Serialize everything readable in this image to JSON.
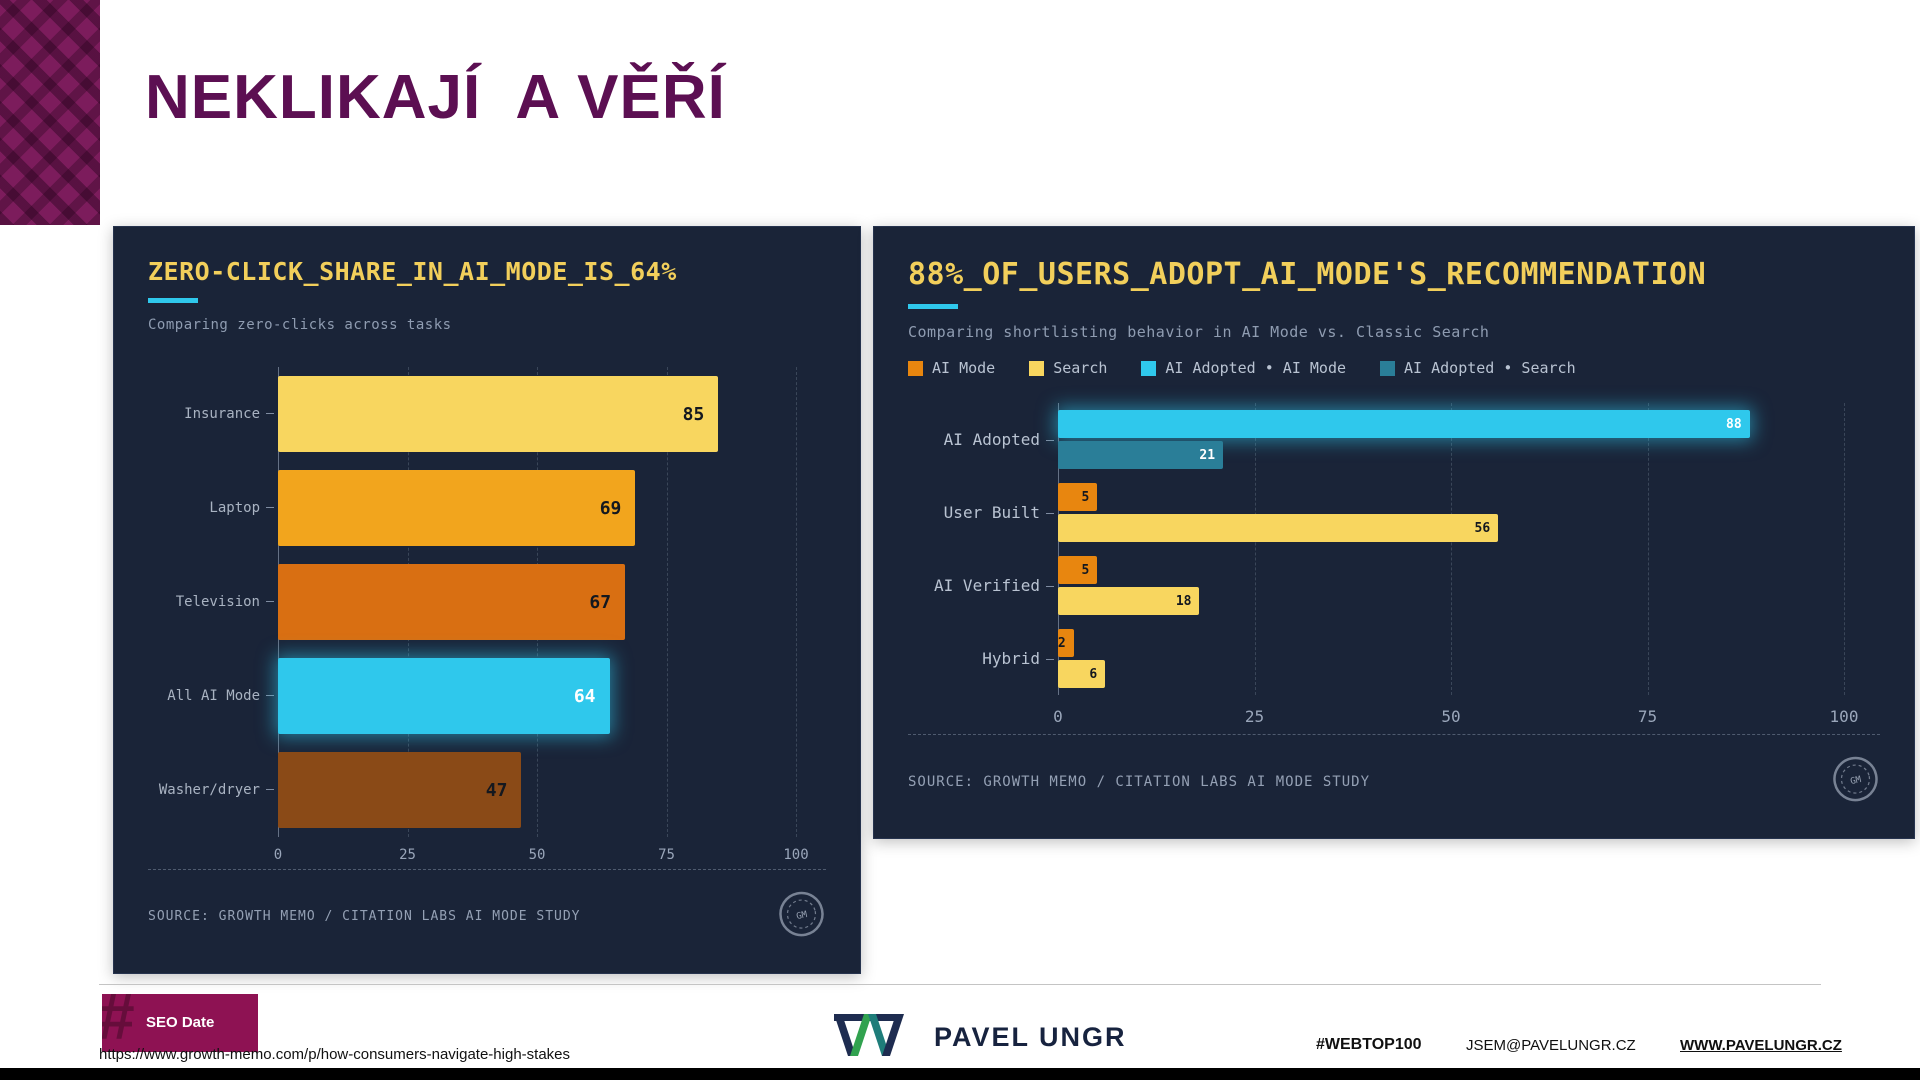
{
  "palette": {
    "panel_bg": "#1a2438",
    "slide_title_color": "#5c0f52",
    "chart_title_color": "#f2cf5b",
    "accent_cyan": "#2fc8ec",
    "badge_magenta": "#8e1253"
  },
  "slide": {
    "title": "NEKLIKAJÍ  A VĚŘÍ",
    "source_url": "https://www.growth-memo.com/p/how-consumers-navigate-high-stakes"
  },
  "footer": {
    "seo_badge": "SEO Date",
    "brand_name": "PAVEL UNGR",
    "hashtag": "#WEBTOP100",
    "email": "JSEM@PAVELUNGR.CZ",
    "website": "WWW.PAVELUNGR.CZ"
  },
  "chart_data": [
    {
      "type": "bar",
      "orientation": "horizontal",
      "title": "ZERO-CLICK_SHARE_IN_AI_MODE_IS_64%",
      "subtitle": "Comparing zero-clicks across tasks",
      "categories": [
        "Insurance",
        "Laptop",
        "Television",
        "All AI Mode",
        "Washer/dryer"
      ],
      "values": [
        85,
        69,
        67,
        64,
        47
      ],
      "bar_colors": [
        "#f8d65f",
        "#f2a51d",
        "#d96f12",
        "#2fc8ec",
        "#8a4a17"
      ],
      "highlight_category": "All AI Mode",
      "xlim": [
        0,
        100
      ],
      "x_ticks": [
        0,
        25,
        50,
        75,
        100
      ],
      "grid": true,
      "legend_position": "none",
      "source": "SOURCE: GROWTH MEMO / CITATION LABS AI MODE STUDY"
    },
    {
      "type": "bar",
      "orientation": "horizontal",
      "title": "88%_OF_USERS_ADOPT_AI_MODE'S_RECOMMENDATION",
      "subtitle": "Comparing shortlisting behavior in AI Mode vs. Classic Search",
      "legend": [
        {
          "label": "AI Mode",
          "color": "#e8860f"
        },
        {
          "label": "Search",
          "color": "#f8d65f"
        },
        {
          "label": "AI Adopted • AI Mode",
          "color": "#2fc8ec"
        },
        {
          "label": "AI Adopted • Search",
          "color": "#2a7e98"
        }
      ],
      "groups": [
        {
          "category": "AI Adopted",
          "bars": [
            {
              "series": "AI Adopted • AI Mode",
              "value": 88,
              "color": "#2fc8ec"
            },
            {
              "series": "AI Adopted • Search",
              "value": 21,
              "color": "#2a7e98"
            }
          ]
        },
        {
          "category": "User Built",
          "bars": [
            {
              "series": "AI Mode",
              "value": 5,
              "color": "#e8860f"
            },
            {
              "series": "Search",
              "value": 56,
              "color": "#f8d65f"
            }
          ]
        },
        {
          "category": "AI Verified",
          "bars": [
            {
              "series": "AI Mode",
              "value": 5,
              "color": "#e8860f"
            },
            {
              "series": "Search",
              "value": 18,
              "color": "#f8d65f"
            }
          ]
        },
        {
          "category": "Hybrid",
          "bars": [
            {
              "series": "AI Mode",
              "value": 2,
              "color": "#e8860f"
            },
            {
              "series": "Search",
              "value": 6,
              "color": "#f8d65f"
            }
          ]
        }
      ],
      "xlim": [
        0,
        100
      ],
      "x_ticks": [
        0,
        25,
        50,
        75,
        100
      ],
      "grid": true,
      "legend_position": "top",
      "source": "SOURCE: GROWTH MEMO / CITATION LABS AI MODE STUDY"
    }
  ]
}
